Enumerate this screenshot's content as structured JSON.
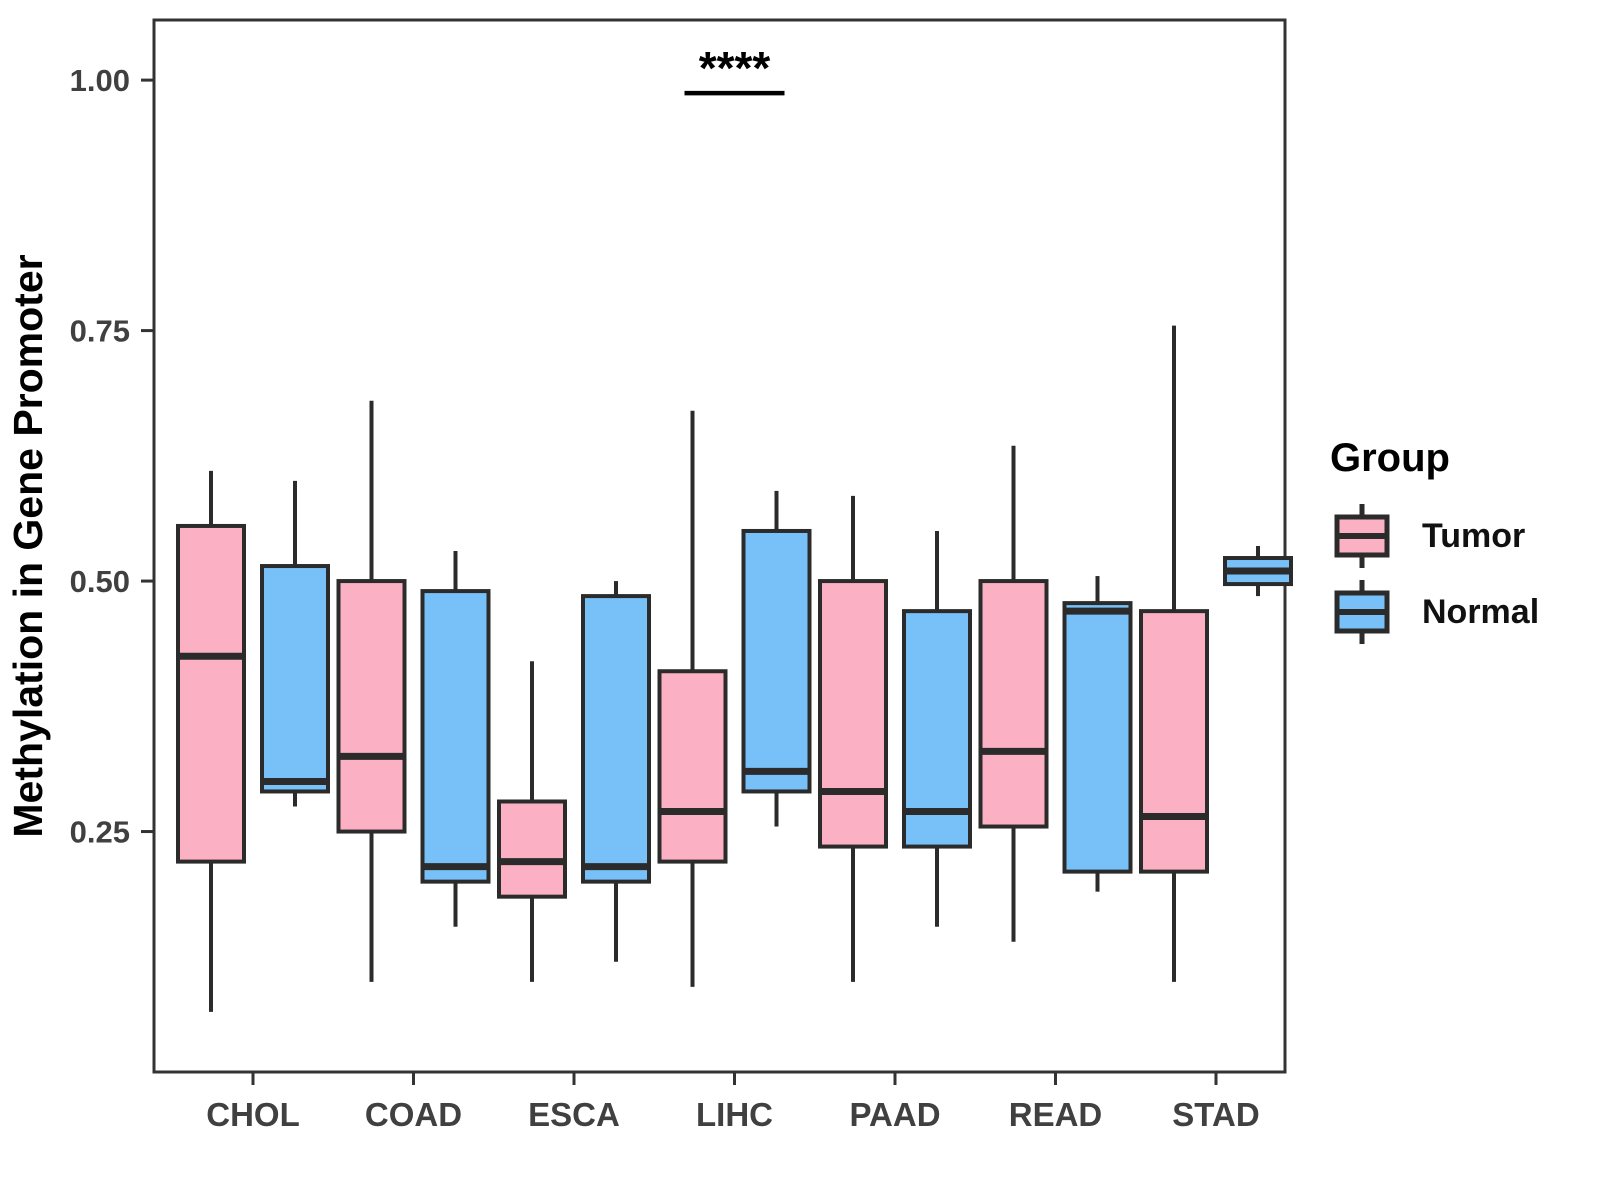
{
  "chart_data": {
    "type": "grouped_boxplot",
    "title": "",
    "xlabel": "",
    "ylabel": "Methylation in Gene Promoter",
    "categories": [
      "CHOL",
      "COAD",
      "ESCA",
      "LIHC",
      "PAAD",
      "READ",
      "STAD"
    ],
    "groups": [
      {
        "name": "Tumor",
        "color": "#FBB0C4"
      },
      {
        "name": "Normal",
        "color": "#77C0F8"
      }
    ],
    "ylim": [
      0.01,
      1.06
    ],
    "y_ticks": [
      0.25,
      0.5,
      0.75,
      1.0
    ],
    "y_tick_labels": [
      "0.25",
      "0.50",
      "0.75",
      "1.00"
    ],
    "grid": false,
    "legend_position": "right",
    "annotation": {
      "text": "****",
      "category": "LIHC",
      "bar_y": 0.987
    },
    "series": [
      {
        "category": "CHOL",
        "group": "Tumor",
        "min": 0.07,
        "q1": 0.22,
        "median": 0.425,
        "q3": 0.555,
        "max": 0.61
      },
      {
        "category": "CHOL",
        "group": "Normal",
        "min": 0.275,
        "q1": 0.29,
        "median": 0.3,
        "q3": 0.515,
        "max": 0.6
      },
      {
        "category": "COAD",
        "group": "Tumor",
        "min": 0.1,
        "q1": 0.25,
        "median": 0.325,
        "q3": 0.5,
        "max": 0.68
      },
      {
        "category": "COAD",
        "group": "Normal",
        "min": 0.155,
        "q1": 0.2,
        "median": 0.215,
        "q3": 0.49,
        "max": 0.53
      },
      {
        "category": "ESCA",
        "group": "Tumor",
        "min": 0.1,
        "q1": 0.185,
        "median": 0.22,
        "q3": 0.28,
        "max": 0.42
      },
      {
        "category": "ESCA",
        "group": "Normal",
        "min": 0.12,
        "q1": 0.2,
        "median": 0.215,
        "q3": 0.485,
        "max": 0.5
      },
      {
        "category": "LIHC",
        "group": "Tumor",
        "min": 0.095,
        "q1": 0.22,
        "median": 0.27,
        "q3": 0.41,
        "max": 0.67
      },
      {
        "category": "LIHC",
        "group": "Normal",
        "min": 0.255,
        "q1": 0.29,
        "median": 0.31,
        "q3": 0.55,
        "max": 0.59
      },
      {
        "category": "PAAD",
        "group": "Tumor",
        "min": 0.1,
        "q1": 0.235,
        "median": 0.29,
        "q3": 0.5,
        "max": 0.585
      },
      {
        "category": "PAAD",
        "group": "Normal",
        "min": 0.155,
        "q1": 0.235,
        "median": 0.27,
        "q3": 0.47,
        "max": 0.55
      },
      {
        "category": "READ",
        "group": "Tumor",
        "min": 0.14,
        "q1": 0.255,
        "median": 0.33,
        "q3": 0.5,
        "max": 0.635
      },
      {
        "category": "READ",
        "group": "Normal",
        "min": 0.19,
        "q1": 0.21,
        "median": 0.47,
        "q3": 0.478,
        "max": 0.505
      },
      {
        "category": "STAD",
        "group": "Tumor",
        "min": 0.1,
        "q1": 0.21,
        "median": 0.265,
        "q3": 0.47,
        "max": 0.755
      },
      {
        "category": "STAD",
        "group": "Normal",
        "min": 0.485,
        "q1": 0.497,
        "median": 0.51,
        "q3": 0.523,
        "max": 0.535
      }
    ]
  },
  "legend": {
    "title": "Group",
    "items": [
      {
        "label": "Tumor"
      },
      {
        "label": "Normal"
      }
    ]
  },
  "style": {
    "box_border_color": "#2B2B2B",
    "axis_color": "#333333",
    "tick_label_color": "#404040"
  }
}
